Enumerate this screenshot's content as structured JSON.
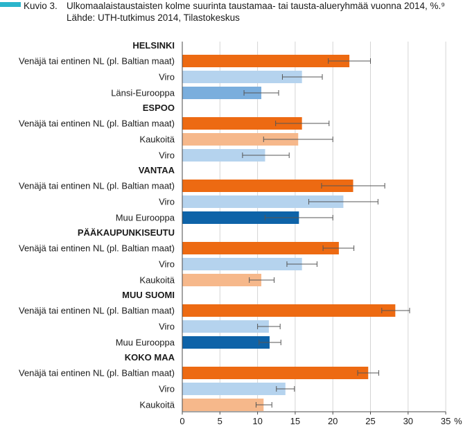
{
  "header": {
    "figure_label": "Kuvio 3.",
    "title": "Ulkomaalaistaustaisten kolme suurinta taustamaa- tai tausta-alueryhmää vuonna 2014, %.⁹ Lähde: UTH-tutkimus 2014, Tilastokeskus",
    "accent_color": "#2bb5cc"
  },
  "chart_data": {
    "type": "bar",
    "orientation": "horizontal",
    "title": "Ulkomaalaistaustaisten kolme suurinta taustamaa- tai tausta-alueryhmää vuonna 2014, %.⁹ Lähde: UTH-tutkimus 2014, Tilastokeskus",
    "xlabel": "%",
    "xlim": [
      0,
      35
    ],
    "xticks": [
      0,
      5,
      10,
      15,
      20,
      25,
      30,
      35
    ],
    "grid": "vertical",
    "colors": {
      "russia": "#ed6a12",
      "estonia": "#b5d3ee",
      "western_europe": "#7aaedd",
      "faraway": "#f6b88b",
      "other_europe": "#0e63a8"
    },
    "groups": [
      {
        "name": "HELSINKI",
        "bars": [
          {
            "label": "Venäjä tai entinen NL (pl. Baltian maat)",
            "value": 22.2,
            "low": 19.4,
            "high": 25.0,
            "color_key": "russia"
          },
          {
            "label": "Viro",
            "value": 15.9,
            "low": 13.3,
            "high": 18.6,
            "color_key": "estonia"
          },
          {
            "label": "Länsi-Eurooppa",
            "value": 10.5,
            "low": 8.2,
            "high": 12.8,
            "color_key": "western_europe"
          }
        ]
      },
      {
        "name": "ESPOO",
        "bars": [
          {
            "label": "Venäjä tai entinen NL (pl. Baltian maat)",
            "value": 15.9,
            "low": 12.4,
            "high": 19.5,
            "color_key": "russia"
          },
          {
            "label": "Kaukoitä",
            "value": 15.4,
            "low": 10.8,
            "high": 20.0,
            "color_key": "faraway"
          },
          {
            "label": "Viro",
            "value": 11.0,
            "low": 8.0,
            "high": 14.2,
            "color_key": "estonia"
          }
        ]
      },
      {
        "name": "VANTAA",
        "bars": [
          {
            "label": "Venäjä tai entinen NL (pl. Baltian maat)",
            "value": 22.7,
            "low": 18.5,
            "high": 26.9,
            "color_key": "russia"
          },
          {
            "label": "Viro",
            "value": 21.4,
            "low": 16.8,
            "high": 26.0,
            "color_key": "estonia"
          },
          {
            "label": "Muu Eurooppa",
            "value": 15.5,
            "low": 11.0,
            "high": 20.0,
            "color_key": "other_europe"
          }
        ]
      },
      {
        "name": "PÄÄKAUPUNKISEUTU",
        "bars": [
          {
            "label": "Venäjä tai entinen NL (pl. Baltian maat)",
            "value": 20.8,
            "low": 18.7,
            "high": 22.8,
            "color_key": "russia"
          },
          {
            "label": "Viro",
            "value": 15.9,
            "low": 13.9,
            "high": 17.9,
            "color_key": "estonia"
          },
          {
            "label": "Kaukoitä",
            "value": 10.5,
            "low": 8.9,
            "high": 12.2,
            "color_key": "faraway"
          }
        ]
      },
      {
        "name": "MUU SUOMI",
        "bars": [
          {
            "label": "Venäjä tai entinen NL (pl. Baltian maat)",
            "value": 28.3,
            "low": 26.5,
            "high": 30.2,
            "color_key": "russia"
          },
          {
            "label": "Viro",
            "value": 11.5,
            "low": 10.0,
            "high": 13.0,
            "color_key": "estonia"
          },
          {
            "label": "Muu Eurooppa",
            "value": 11.6,
            "low": 10.2,
            "high": 13.1,
            "color_key": "other_europe"
          }
        ]
      },
      {
        "name": "KOKO MAA",
        "bars": [
          {
            "label": "Venäjä tai entinen NL (pl. Baltian maat)",
            "value": 24.7,
            "low": 23.3,
            "high": 26.1,
            "color_key": "russia"
          },
          {
            "label": "Viro",
            "value": 13.7,
            "low": 12.5,
            "high": 14.9,
            "color_key": "estonia"
          },
          {
            "label": "Kaukoitä",
            "value": 10.8,
            "low": 9.8,
            "high": 11.9,
            "color_key": "faraway"
          }
        ]
      }
    ]
  }
}
